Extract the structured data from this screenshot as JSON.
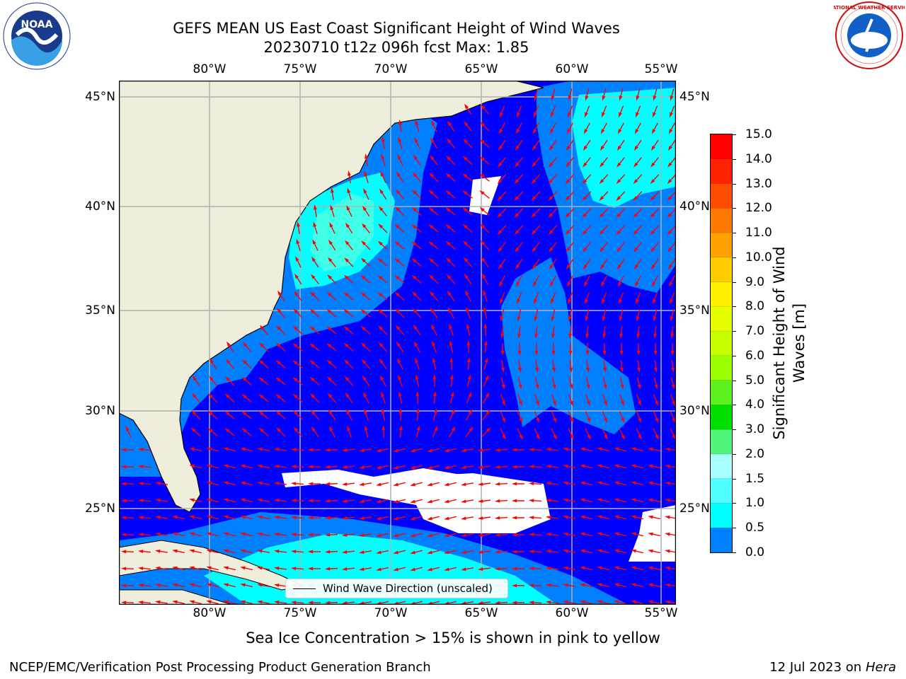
{
  "header": {
    "title_line1": "GEFS MEAN US East Coast Significant Height of Wind Waves",
    "title_line2": "20230710 t12z 096h fcst   Max: 1.85"
  },
  "logos": {
    "noaa_text": "NOAA",
    "nws_text": "NATIONAL WEATHER SERVICE"
  },
  "map": {
    "lon_ticks": [
      "80°W",
      "75°W",
      "70°W",
      "65°W",
      "60°W",
      "55°W"
    ],
    "lat_ticks": [
      "45°N",
      "40°N",
      "35°N",
      "30°N",
      "25°N"
    ],
    "legend_label": "Wind Wave Direction (unscaled)",
    "colors": {
      "land": "#efeedc",
      "ocean_low": "#0000ff",
      "ocean_mid": "#0080ff",
      "ocean_high": "#00ffff",
      "ocean_top": "#40ffe8",
      "arrow": "#ff0000"
    }
  },
  "colorbar": {
    "ticks": [
      "15.0",
      "14.0",
      "13.0",
      "12.0",
      "11.0",
      "10.0",
      "9.0",
      "8.0",
      "7.0",
      "6.0",
      "5.0",
      "4.0",
      "3.0",
      "2.0",
      "1.5",
      "1.0",
      "0.5",
      "0.0"
    ],
    "colors": [
      "#ff0000",
      "#ff2200",
      "#ff4c00",
      "#ff7a00",
      "#ffa200",
      "#ffcc00",
      "#fff000",
      "#e6ff00",
      "#c8ff00",
      "#9aff00",
      "#5cf01e",
      "#00e000",
      "#50f57a",
      "#a8ffff",
      "#50ffff",
      "#00ffff",
      "#0080ff",
      "#0000ff"
    ],
    "label": "Significant Height of Wind Waves [m]"
  },
  "footer": {
    "note": "Sea Ice Concentration > 15% is shown in pink to yellow",
    "org": "NCEP/EMC/Verification Post Processing Product Generation Branch",
    "date": "12 Jul 2023 on ",
    "machine": "Hera"
  }
}
